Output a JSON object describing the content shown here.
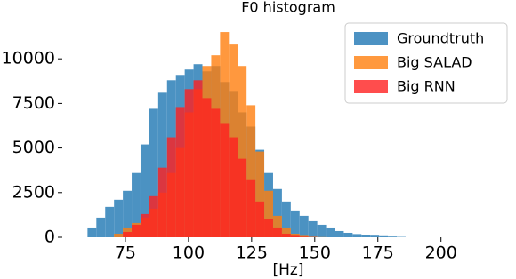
{
  "chart_data": {
    "type": "histogram",
    "title": "F0 histogram",
    "x_label": "[Hz]",
    "bins": [
      60,
      63.5,
      67,
      70.5,
      74,
      77.5,
      81,
      84.5,
      88,
      91.5,
      95,
      98.5,
      102,
      105.5,
      109,
      112.5,
      116,
      119.5,
      123,
      126.5,
      130,
      133.5,
      137,
      140.5,
      144,
      147.5,
      151,
      154.5,
      158,
      161.5,
      165,
      168.5,
      172,
      175.5,
      179,
      182.5,
      186
    ],
    "series": [
      {
        "name": "Groundtruth",
        "color": "#1f77b4",
        "values": [
          500,
          1100,
          1700,
          2100,
          2600,
          3600,
          5200,
          7200,
          8100,
          8800,
          9100,
          9400,
          9700,
          9300,
          9600,
          8700,
          8200,
          7000,
          6200,
          4900,
          3600,
          2700,
          2000,
          1500,
          1200,
          900,
          700,
          500,
          350,
          250,
          180,
          130,
          90,
          60,
          40,
          20
        ]
      },
      {
        "name": "Big SALAD",
        "color": "#ff7f0e",
        "values": [
          0,
          0,
          0,
          200,
          500,
          800,
          1100,
          1600,
          2500,
          3600,
          5000,
          7000,
          8300,
          9600,
          10200,
          11500,
          10800,
          9600,
          7400,
          4800,
          2600,
          1200,
          500,
          200,
          80,
          30,
          10,
          0,
          0,
          0,
          0,
          0,
          0,
          0,
          0,
          0
        ]
      },
      {
        "name": "Big RNN",
        "color": "#ff2020",
        "values": [
          0,
          0,
          0,
          0,
          300,
          700,
          1300,
          2300,
          3900,
          5600,
          7300,
          8300,
          8800,
          7800,
          7200,
          6400,
          5600,
          4400,
          3200,
          2000,
          1000,
          500,
          200,
          80,
          30,
          10,
          0,
          0,
          0,
          0,
          0,
          0,
          0,
          0,
          0,
          0
        ]
      }
    ],
    "xlim": [
      50,
      229
    ],
    "ylim": [
      0,
      12300
    ],
    "xticks": [
      75,
      100,
      125,
      150,
      175,
      200
    ],
    "yticks": [
      0,
      2500,
      5000,
      7500,
      10000
    ],
    "legend": "upper right"
  }
}
